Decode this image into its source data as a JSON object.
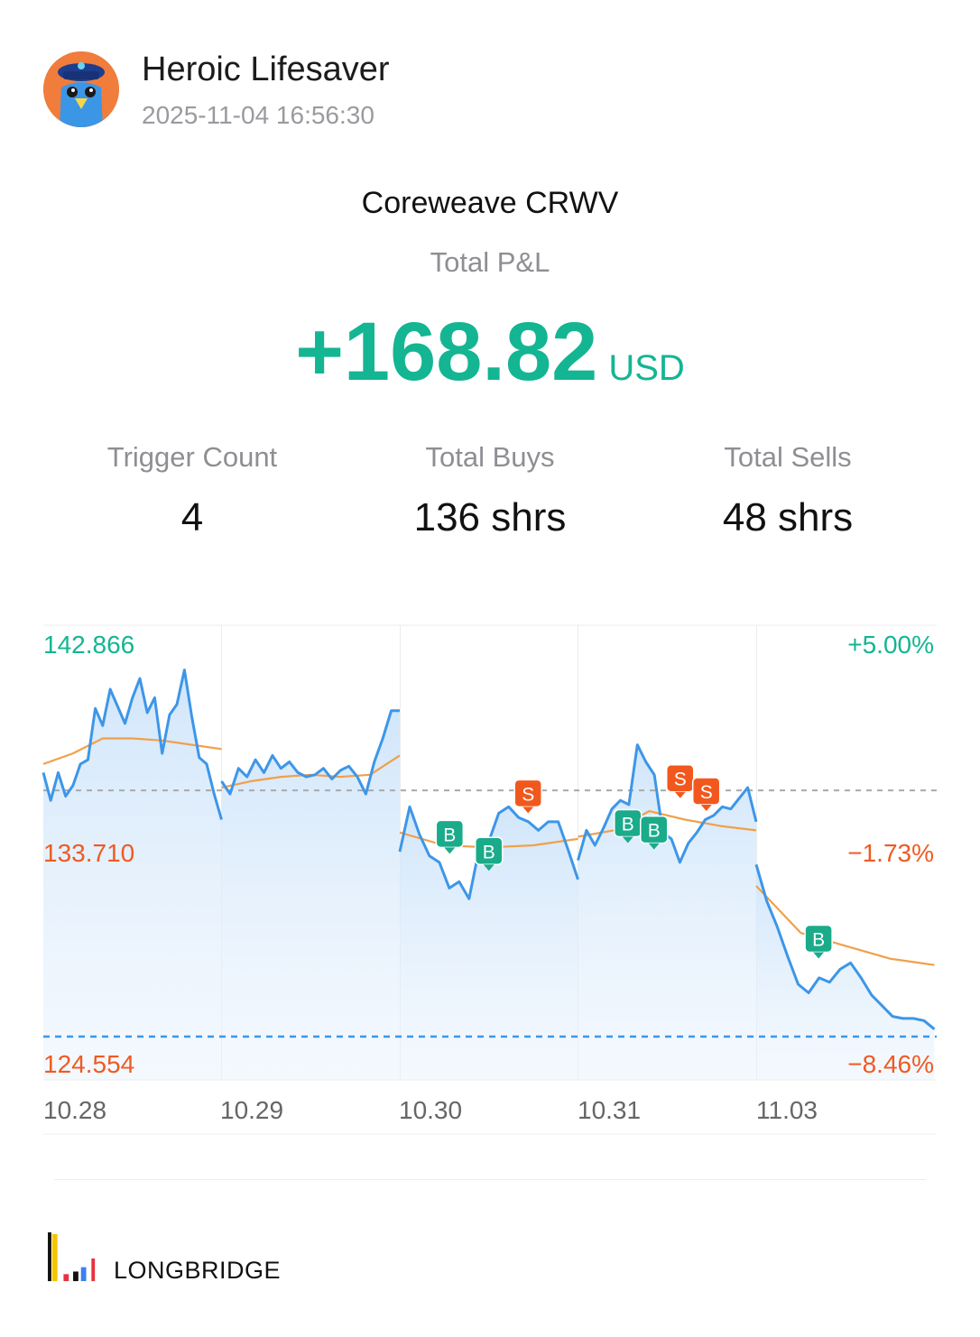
{
  "post": {
    "username": "Heroic Lifesaver",
    "timestamp": "2025-11-04 16:56:30",
    "avatar_icon": "police-bird-avatar-icon"
  },
  "summary": {
    "stock_name": "Coreweave CRWV",
    "pnl_label": "Total P&L",
    "pnl_value": "+168.82",
    "pnl_unit": "USD",
    "pnl_color": "#14b592"
  },
  "stats": [
    {
      "label": "Trigger Count",
      "value": "4"
    },
    {
      "label": "Total Buys",
      "value": "136 shrs"
    },
    {
      "label": "Total Sells",
      "value": "48 shrs"
    }
  ],
  "chart": {
    "price_labels": {
      "high": "142.866",
      "mid": "133.710",
      "low": "124.554"
    },
    "pct_labels": {
      "high": "+5.00%",
      "mid": "−1.73%",
      "low": "−8.46%"
    },
    "date_labels": [
      "10.28",
      "10.29",
      "10.30",
      "10.31",
      "11.03"
    ],
    "colors": {
      "price_line": "#3d96e8",
      "avg_line": "#f0a04a",
      "buy_marker": "#1aab8a",
      "sell_marker": "#f2581d",
      "up": "#14b592",
      "down": "#ef5a22"
    },
    "buy_marker_label": "B",
    "sell_marker_label": "S"
  },
  "chart_data": {
    "type": "line",
    "y_range": [
      124.554,
      142.866
    ],
    "reference_price": 136.065,
    "reference_line": "dashed",
    "current_price_line": "dashed",
    "series": [
      {
        "days": [
          "10.28",
          "10.29",
          "10.30",
          "10.31",
          "11.03"
        ],
        "price": [
          [
            136.9,
            135.6,
            136.9,
            135.8,
            136.3,
            137.3,
            137.5,
            139.9,
            139.1,
            140.8,
            140.0,
            139.2,
            140.4,
            141.3,
            139.7,
            140.4,
            137.8,
            139.6,
            140.1,
            141.7,
            139.5,
            137.6,
            137.3,
            135.9,
            134.7
          ],
          [
            136.5,
            135.9,
            137.1,
            136.7,
            137.5,
            136.9,
            137.7,
            137.1,
            137.4,
            136.9,
            136.7,
            136.8,
            137.1,
            136.6,
            137.0,
            137.2,
            136.7,
            135.9,
            137.4,
            138.5,
            139.8,
            139.8
          ],
          [
            133.2,
            135.3,
            134.0,
            133.0,
            132.7,
            131.5,
            131.8,
            131.0,
            133.3,
            133.7,
            135.0,
            135.3,
            134.8,
            134.6,
            134.2,
            134.6,
            134.6,
            133.3,
            131.9
          ],
          [
            132.8,
            134.2,
            133.5,
            134.3,
            135.2,
            135.6,
            135.4,
            138.2,
            137.4,
            136.8,
            134.1,
            133.8,
            132.7,
            133.6,
            134.1,
            134.7,
            134.9,
            135.3,
            135.2,
            135.7,
            136.2,
            134.6
          ],
          [
            132.6,
            130.9,
            129.7,
            128.3,
            127.0,
            126.6,
            127.3,
            127.1,
            127.7,
            128.0,
            127.3,
            126.5,
            126.0,
            125.5,
            125.4,
            125.4,
            125.3,
            124.9
          ]
        ],
        "average": [
          [
            137.3,
            137.8,
            138.5,
            138.5,
            138.4,
            138.2,
            138.0
          ],
          [
            136.2,
            136.5,
            136.7,
            136.8,
            136.7,
            136.8,
            137.7
          ],
          [
            134.1,
            133.5,
            133.4,
            133.5,
            133.8
          ],
          [
            133.9,
            134.2,
            135.1,
            134.7,
            134.4,
            134.2
          ],
          [
            131.6,
            129.4,
            128.8,
            128.2,
            127.9
          ]
        ]
      }
    ],
    "trades": [
      {
        "type": "B",
        "day": "10.30",
        "price": 133.4
      },
      {
        "type": "B",
        "day": "10.30",
        "price": 132.6
      },
      {
        "type": "S",
        "day": "10.30",
        "price": 135.3
      },
      {
        "type": "B",
        "day": "10.31",
        "price": 133.9
      },
      {
        "type": "B",
        "day": "10.31",
        "price": 133.6
      },
      {
        "type": "S",
        "day": "10.31",
        "price": 136.0
      },
      {
        "type": "S",
        "day": "10.31",
        "price": 135.4
      },
      {
        "type": "B",
        "day": "11.03",
        "price": 128.5
      }
    ]
  },
  "footer": {
    "brand": "LONGBRIDGE",
    "logo_icon": "longbridge-bars-icon"
  }
}
